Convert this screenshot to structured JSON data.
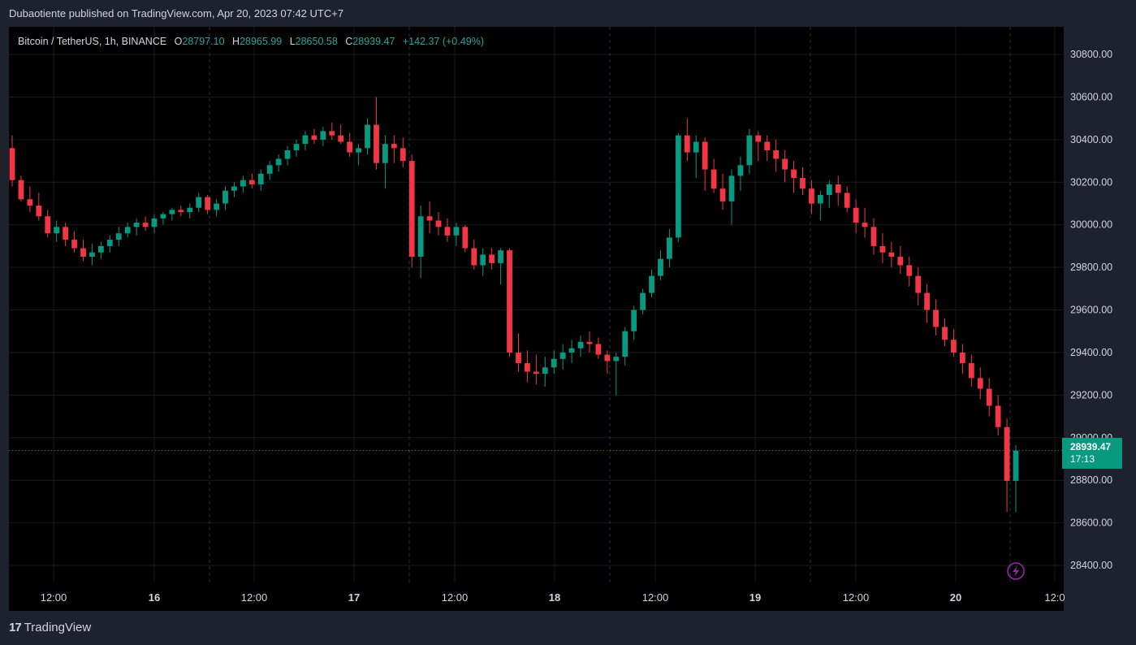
{
  "header": {
    "published_line": "Dubaotiente published on TradingView.com, Apr 20, 2023 07:42 UTC+7"
  },
  "symbol": {
    "name": "Bitcoin / TetherUS, 1h, BINANCE",
    "open_key": "O",
    "open": "28797.10",
    "high_key": "H",
    "high": "28965.99",
    "low_key": "L",
    "low": "28650.58",
    "close_key": "C",
    "close": "28939.47",
    "change": "+142.37 (+0.49%)"
  },
  "price_label": {
    "price": "28939.47",
    "countdown": "17:13"
  },
  "footer": {
    "brand": "TradingView",
    "logo_mark": "17"
  },
  "colors": {
    "up": "#089981",
    "down": "#f23645",
    "background": "#000000",
    "axis_text": "#d1d4dc",
    "grid": "#1a1a1a",
    "session_line": "#2a3150",
    "alert": "#9c27b0"
  },
  "icons": {
    "alert": "lightning-alert-icon",
    "logo": "tradingview-logo-icon"
  },
  "chart_data": {
    "type": "candlestick",
    "interval": "1h",
    "ylim": [
      28320,
      30930
    ],
    "yticks": [
      "30800.00",
      "30600.00",
      "30400.00",
      "30200.00",
      "30000.00",
      "29800.00",
      "29600.00",
      "29400.00",
      "29200.00",
      "29000.00",
      "28800.00",
      "28600.00",
      "28400.00"
    ],
    "xticks": [
      "12:00",
      "16",
      "12:00",
      "17",
      "12:00",
      "18",
      "12:00",
      "19",
      "12:00",
      "20",
      "12:0"
    ],
    "last_price": 28939.47,
    "candles": [
      [
        30360,
        30420,
        30180,
        30210
      ],
      [
        30210,
        30230,
        30110,
        30120
      ],
      [
        30120,
        30180,
        30060,
        30090
      ],
      [
        30090,
        30150,
        30020,
        30040
      ],
      [
        30040,
        30070,
        29940,
        29960
      ],
      [
        29960,
        30020,
        29920,
        29990
      ],
      [
        29990,
        30010,
        29900,
        29930
      ],
      [
        29930,
        29970,
        29870,
        29890
      ],
      [
        29890,
        29930,
        29830,
        29850
      ],
      [
        29850,
        29910,
        29810,
        29870
      ],
      [
        29870,
        29920,
        29840,
        29900
      ],
      [
        29900,
        29950,
        29870,
        29930
      ],
      [
        29930,
        29990,
        29900,
        29960
      ],
      [
        29960,
        30010,
        29940,
        29990
      ],
      [
        29990,
        30030,
        29950,
        30010
      ],
      [
        30010,
        30040,
        29970,
        29990
      ],
      [
        29990,
        30050,
        29960,
        30030
      ],
      [
        30030,
        30060,
        30000,
        30050
      ],
      [
        30050,
        30080,
        30020,
        30070
      ],
      [
        30070,
        30090,
        30040,
        30060
      ],
      [
        30060,
        30100,
        30030,
        30080
      ],
      [
        30080,
        30150,
        30060,
        30130
      ],
      [
        30130,
        30140,
        30050,
        30070
      ],
      [
        30070,
        30120,
        30040,
        30100
      ],
      [
        30100,
        30180,
        30070,
        30160
      ],
      [
        30160,
        30200,
        30130,
        30180
      ],
      [
        30180,
        30230,
        30150,
        30210
      ],
      [
        30210,
        30240,
        30170,
        30190
      ],
      [
        30190,
        30260,
        30160,
        30240
      ],
      [
        30240,
        30300,
        30210,
        30280
      ],
      [
        30280,
        30330,
        30250,
        30310
      ],
      [
        30310,
        30370,
        30280,
        30350
      ],
      [
        30350,
        30400,
        30320,
        30380
      ],
      [
        30380,
        30440,
        30350,
        30420
      ],
      [
        30420,
        30450,
        30380,
        30400
      ],
      [
        30400,
        30460,
        30370,
        30440
      ],
      [
        30440,
        30480,
        30400,
        30420
      ],
      [
        30420,
        30470,
        30380,
        30390
      ],
      [
        30390,
        30430,
        30320,
        30340
      ],
      [
        30340,
        30380,
        30280,
        30360
      ],
      [
        30360,
        30500,
        30330,
        30470
      ],
      [
        30470,
        30600,
        30260,
        30290
      ],
      [
        30290,
        30420,
        30170,
        30380
      ],
      [
        30380,
        30420,
        30290,
        30360
      ],
      [
        30360,
        30410,
        30270,
        30300
      ],
      [
        30300,
        30330,
        29800,
        29850
      ],
      [
        29850,
        30090,
        29750,
        30040
      ],
      [
        30040,
        30110,
        29960,
        30020
      ],
      [
        30020,
        30060,
        29950,
        29990
      ],
      [
        29990,
        30030,
        29920,
        29950
      ],
      [
        29950,
        30010,
        29900,
        29990
      ],
      [
        29990,
        30000,
        29870,
        29890
      ],
      [
        29890,
        29930,
        29790,
        29810
      ],
      [
        29810,
        29890,
        29760,
        29860
      ],
      [
        29860,
        29890,
        29790,
        29820
      ],
      [
        29820,
        29890,
        29720,
        29880
      ],
      [
        29880,
        29890,
        29380,
        29400
      ],
      [
        29400,
        29490,
        29310,
        29350
      ],
      [
        29350,
        29410,
        29260,
        29310
      ],
      [
        29310,
        29390,
        29250,
        29300
      ],
      [
        29300,
        29380,
        29240,
        29330
      ],
      [
        29330,
        29410,
        29300,
        29370
      ],
      [
        29370,
        29440,
        29320,
        29400
      ],
      [
        29400,
        29460,
        29350,
        29420
      ],
      [
        29420,
        29480,
        29380,
        29450
      ],
      [
        29450,
        29500,
        29400,
        29440
      ],
      [
        29440,
        29470,
        29370,
        29390
      ],
      [
        29390,
        29410,
        29300,
        29360
      ],
      [
        29360,
        29400,
        29200,
        29380
      ],
      [
        29380,
        29520,
        29340,
        29500
      ],
      [
        29500,
        29620,
        29460,
        29600
      ],
      [
        29600,
        29700,
        29580,
        29680
      ],
      [
        29680,
        29790,
        29660,
        29760
      ],
      [
        29760,
        29880,
        29740,
        29840
      ],
      [
        29840,
        29980,
        29800,
        29940
      ],
      [
        29940,
        30430,
        29920,
        30420
      ],
      [
        30420,
        30500,
        30300,
        30340
      ],
      [
        30340,
        30420,
        30220,
        30390
      ],
      [
        30390,
        30410,
        30160,
        30260
      ],
      [
        30260,
        30310,
        30150,
        30170
      ],
      [
        30170,
        30240,
        30070,
        30110
      ],
      [
        30110,
        30260,
        30000,
        30230
      ],
      [
        30230,
        30320,
        30160,
        30280
      ],
      [
        30280,
        30450,
        30240,
        30420
      ],
      [
        30420,
        30440,
        30300,
        30390
      ],
      [
        30390,
        30420,
        30300,
        30350
      ],
      [
        30350,
        30400,
        30250,
        30310
      ],
      [
        30310,
        30350,
        30200,
        30260
      ],
      [
        30260,
        30300,
        30150,
        30220
      ],
      [
        30220,
        30270,
        30140,
        30170
      ],
      [
        30170,
        30210,
        30050,
        30100
      ],
      [
        30100,
        30160,
        30020,
        30140
      ],
      [
        30140,
        30210,
        30080,
        30190
      ],
      [
        30190,
        30230,
        30090,
        30150
      ],
      [
        30150,
        30180,
        30060,
        30080
      ],
      [
        30080,
        30120,
        29960,
        30010
      ],
      [
        30010,
        30080,
        29940,
        29990
      ],
      [
        29990,
        30030,
        29860,
        29900
      ],
      [
        29900,
        29960,
        29820,
        29870
      ],
      [
        29870,
        29920,
        29800,
        29850
      ],
      [
        29850,
        29900,
        29770,
        29810
      ],
      [
        29810,
        29850,
        29710,
        29760
      ],
      [
        29760,
        29800,
        29620,
        29680
      ],
      [
        29680,
        29720,
        29540,
        29600
      ],
      [
        29600,
        29650,
        29480,
        29520
      ],
      [
        29520,
        29560,
        29430,
        29460
      ],
      [
        29460,
        29510,
        29380,
        29400
      ],
      [
        29400,
        29440,
        29300,
        29350
      ],
      [
        29350,
        29390,
        29240,
        29280
      ],
      [
        29280,
        29330,
        29180,
        29230
      ],
      [
        29230,
        29280,
        29100,
        29150
      ],
      [
        29150,
        29200,
        29010,
        29050
      ],
      [
        29050,
        29090,
        28650,
        28797.1
      ],
      [
        28797.1,
        28965.99,
        28650.58,
        28939.47
      ]
    ]
  }
}
